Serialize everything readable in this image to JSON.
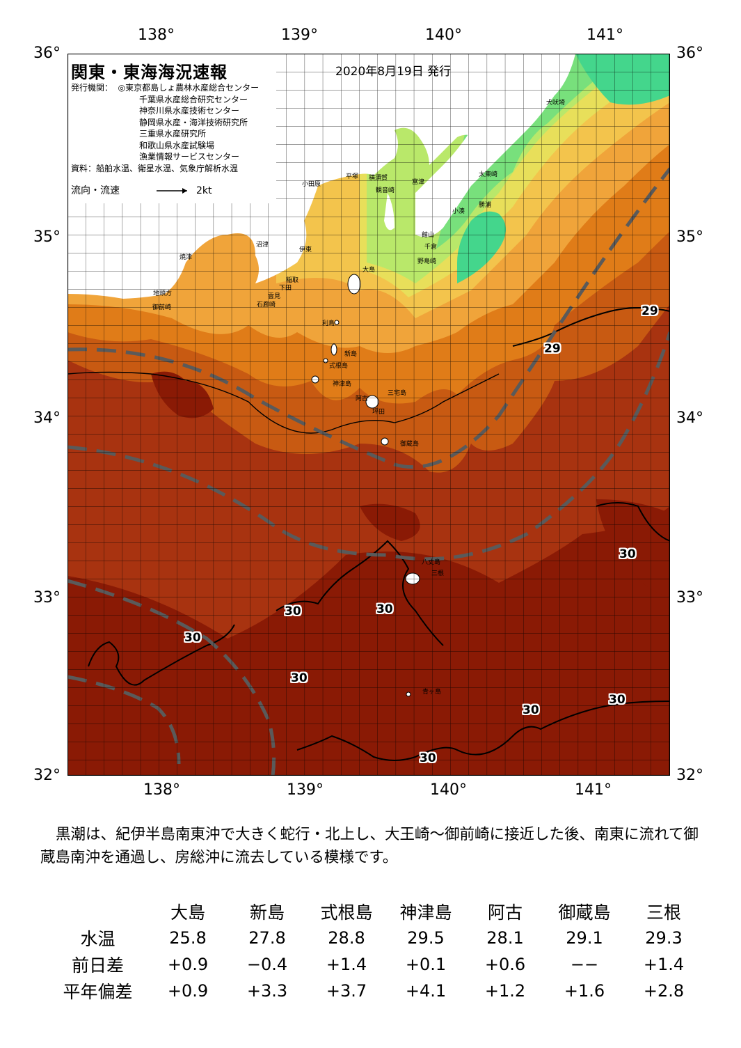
{
  "title": "関東・東海海況速報",
  "date": "2020年8月19日 発行",
  "issuers_label": "発行機関：",
  "issuers": [
    "◎東京都島しょ農林水産総合センター",
    "千葉県水産総合研究センター",
    "神奈川県水産技術センター",
    "静岡県水産・海洋技術研究所",
    "三重県水産研究所",
    "和歌山県水産試験場",
    "漁業情報サービスセンター"
  ],
  "sources": "資料：船舶水温、衛星水温、気象庁解析水温",
  "current_label": "流向・流速",
  "current_scale": "2kt",
  "lon_labels": [
    "138°",
    "139°",
    "140°",
    "141°"
  ],
  "lat_labels": [
    "36°",
    "35°",
    "34°",
    "33°",
    "32°"
  ],
  "place_names": {
    "inubo": "犬吠埼",
    "taito": "太東崎",
    "katsuura": "勝浦",
    "kominato": "小湊",
    "futtsu": "富津",
    "tateyama": "館山",
    "chikura": "千倉",
    "nojima": "野島崎",
    "yokosuka": "横須賀",
    "kannonzaki": "観音崎",
    "hiratsuka": "平塚",
    "odawara": "小田原",
    "ito": "伊東",
    "numazu": "沼津",
    "yaizu": "焼津",
    "jitogata": "地頭方",
    "omaezaki": "御前崎",
    "inatori": "稲取",
    "shimoda": "下田",
    "mera": "雲見",
    "irozaki": "石廊崎",
    "oshima": "大島",
    "toshima": "利島",
    "niijima": "新島",
    "shikinejima": "式根島",
    "kozushima": "神津島",
    "miyakejima": "三宅島",
    "ako": "阿古",
    "tsubota": "坪田",
    "mikurajima": "御蔵島",
    "hachijojima": "八丈島",
    "mikune": "三根",
    "aogashima": "青ヶ島"
  },
  "contour_labels": [
    "29",
    "29",
    "30",
    "30",
    "30",
    "30",
    "30",
    "30",
    "30",
    "30"
  ],
  "summary": "黒潮は、紀伊半島南東沖で大きく蛇行・北上し、大王崎～御前崎に接近した後、南東に流れて御蔵島南沖を通過し、房総沖に流去している模様です。",
  "table": {
    "columns": [
      "大島",
      "新島",
      "式根島",
      "神津島",
      "阿古",
      "御蔵島",
      "三根"
    ],
    "rows": [
      {
        "label": "水温",
        "values": [
          "25.8",
          "27.8",
          "28.8",
          "29.5",
          "28.1",
          "29.1",
          "29.3"
        ]
      },
      {
        "label": "前日差",
        "values": [
          "+0.9",
          "−0.4",
          "+1.4",
          "+0.1",
          "+0.6",
          "−−",
          "+1.4"
        ]
      },
      {
        "label": "平年偏差",
        "values": [
          "+0.9",
          "+3.3",
          "+3.7",
          "+4.1",
          "+1.2",
          "+1.6",
          "+2.8"
        ]
      }
    ]
  },
  "colors": {
    "warm_30": "#8a1a05",
    "water_29": "#a83310",
    "water_28": "#c85a12",
    "water_27": "#e07c18",
    "water_26": "#f0a43a",
    "water_25": "#f3c44c",
    "water_24": "#e8df5a",
    "water_23": "#b9e86a",
    "water_22": "#78e07c",
    "water_21": "#44d68c",
    "kuroshio_axis": "#5a5a5a"
  }
}
